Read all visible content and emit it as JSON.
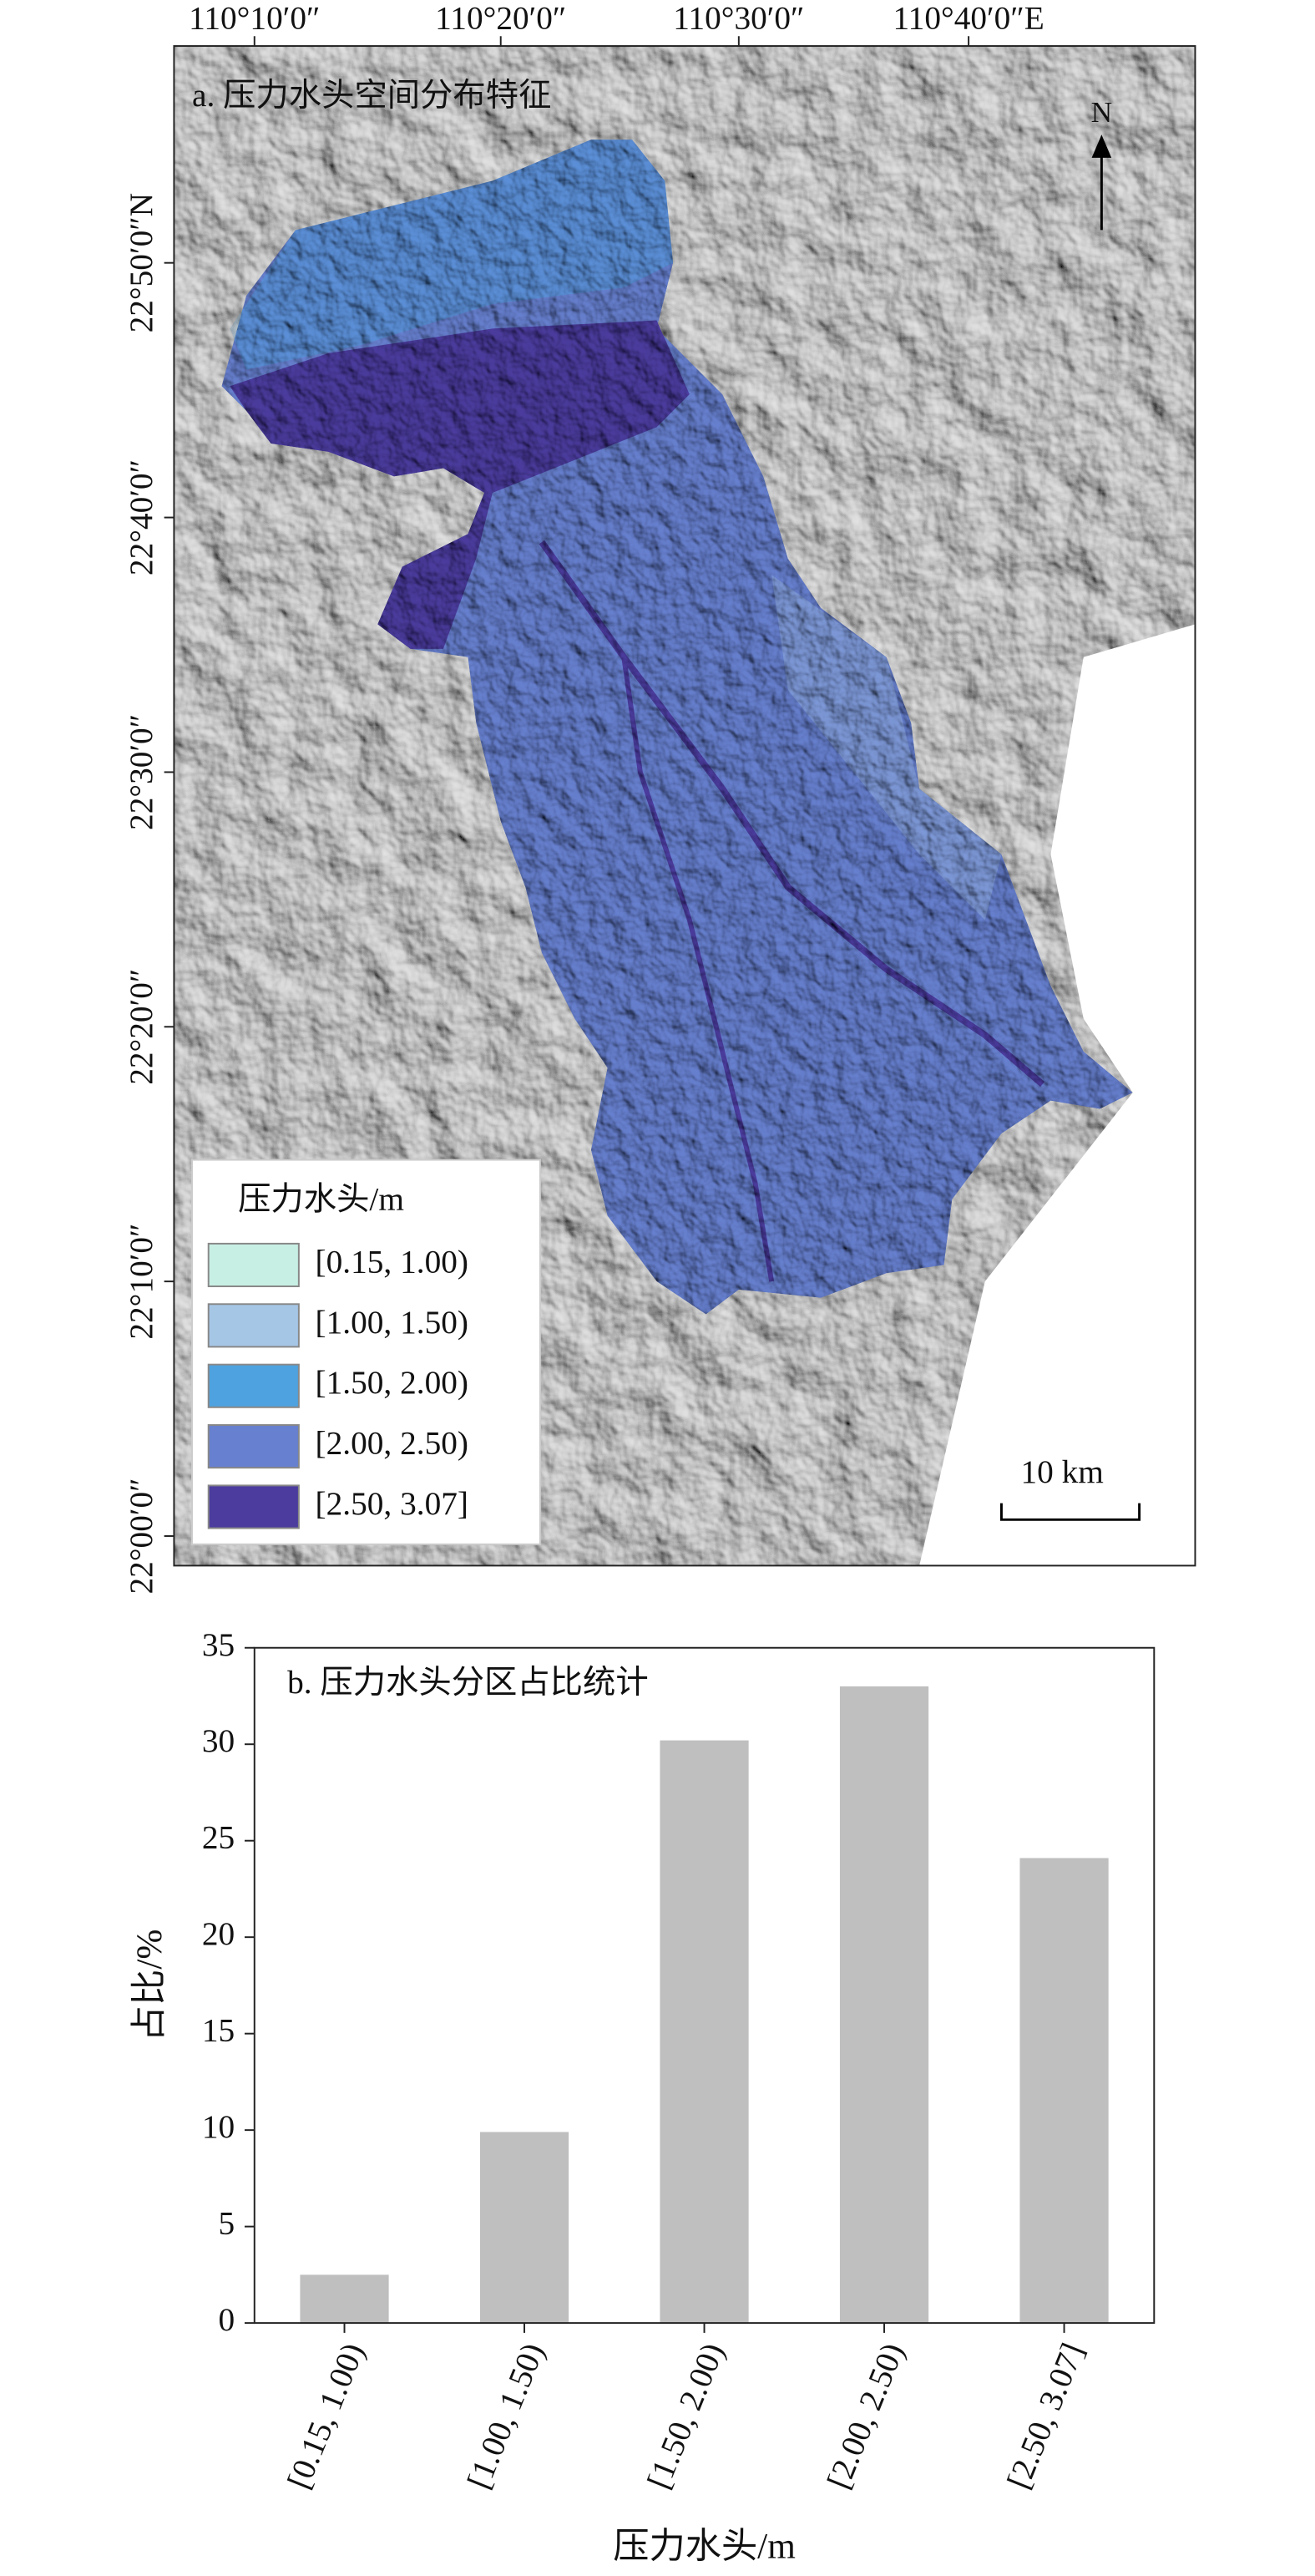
{
  "map": {
    "title": "a. 压力水头空间分布特征",
    "x_ticks": [
      "110°10′0″",
      "110°20′0″",
      "110°30′0″",
      "110°40′0″E"
    ],
    "y_ticks": [
      "22°50′0″N",
      "22°40′0″",
      "22°30′0″",
      "22°20′0″",
      "22°10′0″",
      "22°00′0″"
    ],
    "north": "N",
    "scale_bar": "10 km",
    "legend": {
      "title": "压力水头/m",
      "items": [
        {
          "label": "[0.15, 1.00)",
          "color": "#c8efe4"
        },
        {
          "label": "[1.00, 1.50)",
          "color": "#a6c6e6"
        },
        {
          "label": "[1.50, 2.00)",
          "color": "#4ea2df"
        },
        {
          "label": "[2.00, 2.50)",
          "color": "#6780cf"
        },
        {
          "label": "[2.50, 3.07]",
          "color": "#4b3c9e"
        }
      ]
    }
  },
  "chart_data": {
    "type": "bar",
    "title": "b. 压力水头分区占比统计",
    "x_label": "压力水头/m",
    "y_label": "占比/%",
    "categories": [
      "[0.15, 1.00)",
      "[1.00, 1.50)",
      "[1.50, 2.00)",
      "[2.00, 2.50)",
      "[2.50, 3.07]"
    ],
    "values": [
      2.5,
      9.9,
      30.2,
      33.0,
      24.1
    ],
    "color": "#bfbfbf",
    "ylim": [
      0,
      35
    ],
    "yticks": [
      0,
      5,
      10,
      15,
      20,
      25,
      30,
      35
    ]
  }
}
